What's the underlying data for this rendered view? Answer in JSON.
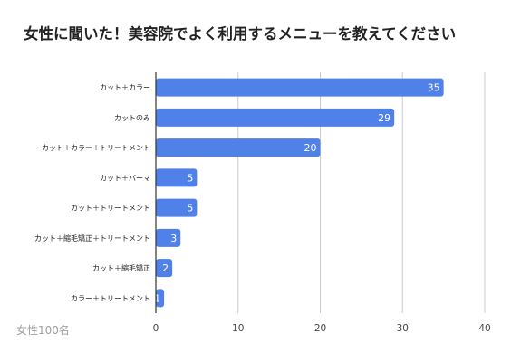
{
  "title": "女性に聞いた！美容院でよく利用するメニューを教えてください",
  "note": "女性100名",
  "colors": {
    "bar": "#4f81e8",
    "grid": "#cccccc",
    "axis": "#333333"
  },
  "chart_data": {
    "type": "bar",
    "orientation": "horizontal",
    "categories": [
      "カット＋カラー",
      "カットのみ",
      "カット＋カラー＋トリートメント",
      "カット＋パーマ",
      "カット＋トリートメント",
      "カット＋縮毛矯正＋トリートメント",
      "カット＋縮毛矯正",
      "カラー＋トリートメント"
    ],
    "values": [
      35,
      29,
      20,
      5,
      5,
      3,
      2,
      1
    ],
    "xlim": [
      0,
      40
    ],
    "xticks": [
      0,
      10,
      20,
      30,
      40
    ],
    "grid": true,
    "legend": "none"
  }
}
